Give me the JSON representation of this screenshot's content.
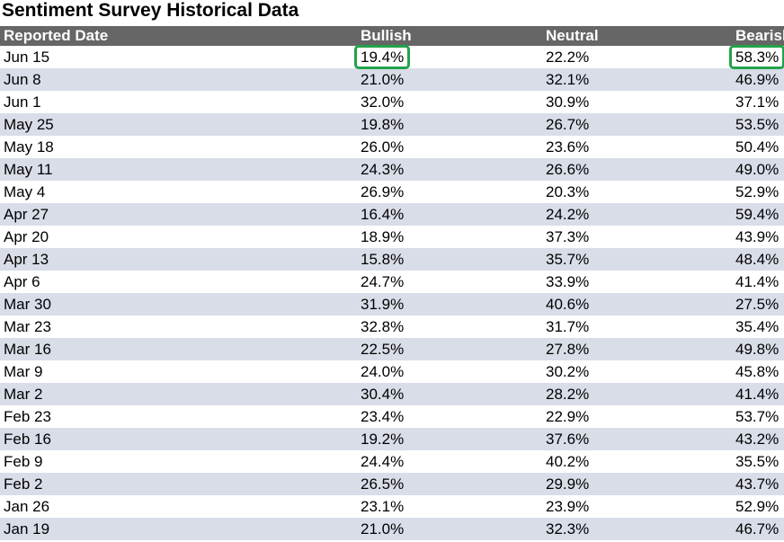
{
  "title": "Sentiment Survey Historical Data",
  "columns": [
    "Reported Date",
    "Bullish",
    "Neutral",
    "Bearish"
  ],
  "highlight_color": "#22a34a",
  "header_bg": "#666666",
  "stripe_color": "#d9dde8",
  "rows": [
    {
      "date": "Jun 15",
      "bullish": "19.4%",
      "neutral": "22.2%",
      "bearish": "58.3%",
      "highlight_bullish": true,
      "highlight_bearish": true
    },
    {
      "date": "Jun 8",
      "bullish": "21.0%",
      "neutral": "32.1%",
      "bearish": "46.9%"
    },
    {
      "date": "Jun 1",
      "bullish": "32.0%",
      "neutral": "30.9%",
      "bearish": "37.1%"
    },
    {
      "date": "May 25",
      "bullish": "19.8%",
      "neutral": "26.7%",
      "bearish": "53.5%"
    },
    {
      "date": "May 18",
      "bullish": "26.0%",
      "neutral": "23.6%",
      "bearish": "50.4%"
    },
    {
      "date": "May 11",
      "bullish": "24.3%",
      "neutral": "26.6%",
      "bearish": "49.0%"
    },
    {
      "date": "May 4",
      "bullish": "26.9%",
      "neutral": "20.3%",
      "bearish": "52.9%"
    },
    {
      "date": "Apr 27",
      "bullish": "16.4%",
      "neutral": "24.2%",
      "bearish": "59.4%"
    },
    {
      "date": "Apr 20",
      "bullish": "18.9%",
      "neutral": "37.3%",
      "bearish": "43.9%"
    },
    {
      "date": "Apr 13",
      "bullish": "15.8%",
      "neutral": "35.7%",
      "bearish": "48.4%"
    },
    {
      "date": "Apr 6",
      "bullish": "24.7%",
      "neutral": "33.9%",
      "bearish": "41.4%"
    },
    {
      "date": "Mar 30",
      "bullish": "31.9%",
      "neutral": "40.6%",
      "bearish": "27.5%"
    },
    {
      "date": "Mar 23",
      "bullish": "32.8%",
      "neutral": "31.7%",
      "bearish": "35.4%"
    },
    {
      "date": "Mar 16",
      "bullish": "22.5%",
      "neutral": "27.8%",
      "bearish": "49.8%"
    },
    {
      "date": "Mar 9",
      "bullish": "24.0%",
      "neutral": "30.2%",
      "bearish": "45.8%"
    },
    {
      "date": "Mar 2",
      "bullish": "30.4%",
      "neutral": "28.2%",
      "bearish": "41.4%"
    },
    {
      "date": "Feb 23",
      "bullish": "23.4%",
      "neutral": "22.9%",
      "bearish": "53.7%"
    },
    {
      "date": "Feb 16",
      "bullish": "19.2%",
      "neutral": "37.6%",
      "bearish": "43.2%"
    },
    {
      "date": "Feb 9",
      "bullish": "24.4%",
      "neutral": "40.2%",
      "bearish": "35.5%"
    },
    {
      "date": "Feb 2",
      "bullish": "26.5%",
      "neutral": "29.9%",
      "bearish": "43.7%"
    },
    {
      "date": "Jan 26",
      "bullish": "23.1%",
      "neutral": "23.9%",
      "bearish": "52.9%"
    },
    {
      "date": "Jan 19",
      "bullish": "21.0%",
      "neutral": "32.3%",
      "bearish": "46.7%"
    }
  ]
}
